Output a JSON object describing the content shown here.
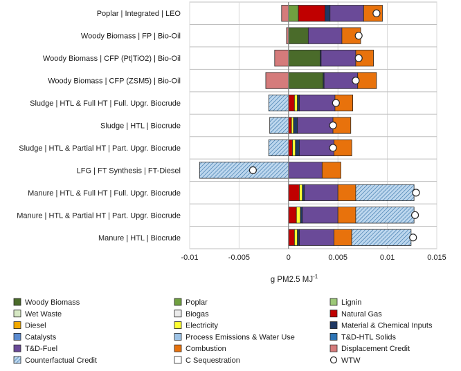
{
  "chart_data": {
    "type": "bar",
    "orientation": "horizontal",
    "stacked": true,
    "xlabel": "g PM2.5 MJ",
    "xlabel_sup": "-1",
    "xlim": [
      -0.01,
      0.015
    ],
    "xticks": [
      -0.01,
      -0.005,
      0,
      0.005,
      0.01,
      0.015
    ],
    "xtick_labels": [
      "-0.01",
      "-0.005",
      "0",
      "0.005",
      "0.01",
      "0.015"
    ],
    "categories": [
      "Poplar | Integrated | LEO",
      "Woody Biomass | FP | Bio-Oil",
      "Woody Biomass | CFP (Pt|TiO2) | Bio-Oil",
      "Woody Biomass | CFP (ZSM5) | Bio-Oil",
      "Sludge | HTL & Full HT | Full. Upgr. Biocrude",
      "Sludge | HTL | Biocrude",
      "Sludge | HTL & Partial HT | Part. Upgr. Biocrude",
      "LFG | FT Synthesis | FT-Diesel",
      "Manure | HTL & Full HT | Full. Upgr. Biocrude",
      "Manure | HTL & Partial HT | Part. Upgr. Biocrude",
      "Manure | HTL | Biocrude"
    ],
    "series": [
      {
        "name": "Woody Biomass",
        "color": "#4a6b2a",
        "pattern": "",
        "values": [
          0,
          0.002,
          0.0032,
          0.0035,
          0,
          0,
          0,
          0,
          0,
          0,
          0
        ]
      },
      {
        "name": "Poplar",
        "color": "#70a040",
        "pattern": "",
        "values": [
          0.001,
          0,
          0,
          0,
          0,
          0,
          0,
          0,
          0,
          0,
          0
        ]
      },
      {
        "name": "Lignin",
        "color": "#9cc878",
        "pattern": "",
        "values": [
          0,
          0,
          0,
          0,
          0,
          0,
          0,
          0,
          0,
          0,
          0
        ]
      },
      {
        "name": "Wet Waste",
        "color": "#d6e8c4",
        "pattern": "",
        "values": [
          0,
          0,
          0,
          0,
          0,
          0,
          0,
          0,
          0,
          0,
          0
        ]
      },
      {
        "name": "Biogas",
        "color": "#ebebeb",
        "pattern": "",
        "values": [
          0,
          0,
          0,
          0,
          0,
          0,
          0,
          0,
          0,
          0,
          0
        ]
      },
      {
        "name": "Natural Gas",
        "color": "#c00000",
        "pattern": "",
        "values": [
          0.0027,
          0,
          0,
          0,
          0.0006,
          0.0003,
          0.0004,
          0,
          0.0011,
          0.0008,
          0.0006
        ]
      },
      {
        "name": "Diesel",
        "color": "#f2a900",
        "pattern": "",
        "values": [
          0,
          0,
          0,
          0,
          0,
          0,
          0,
          0,
          0,
          0,
          0
        ]
      },
      {
        "name": "Electricity",
        "color": "#ffff33",
        "pattern": "",
        "values": [
          0,
          0,
          0,
          0,
          0.0003,
          0.0002,
          0.0003,
          0,
          0.0003,
          0.0004,
          0.0003
        ]
      },
      {
        "name": "Material & Chemical Inputs",
        "color": "#1f3864",
        "pattern": "",
        "values": [
          0.0005,
          0,
          0.0001,
          0.0001,
          0.0002,
          0.0004,
          0.0004,
          0,
          0.0002,
          0.0002,
          0.0002
        ]
      },
      {
        "name": "Catalysts",
        "color": "#5b8bd0",
        "pattern": "",
        "values": [
          0,
          0,
          0,
          0,
          0,
          0,
          0,
          0,
          0,
          0,
          0
        ]
      },
      {
        "name": "Process Emissions & Water Use",
        "color": "#9dc3e6",
        "pattern": "",
        "values": [
          0,
          0,
          0,
          0,
          0,
          0,
          0,
          0,
          0,
          0,
          0
        ]
      },
      {
        "name": "T&D-HTL Solids",
        "color": "#2e75b6",
        "pattern": "",
        "values": [
          0,
          0,
          0,
          0,
          0,
          0,
          0,
          0,
          0,
          0,
          0
        ]
      },
      {
        "name": "T&D-Fuel",
        "color": "#6a4a98",
        "pattern": "",
        "values": [
          0.0034,
          0.0034,
          0.0035,
          0.0034,
          0.0036,
          0.0036,
          0.0035,
          0.0034,
          0.0034,
          0.0036,
          0.0035
        ]
      },
      {
        "name": "Combustion",
        "color": "#e8720c",
        "pattern": "",
        "values": [
          0.0019,
          0.0019,
          0.0018,
          0.0019,
          0.0018,
          0.0018,
          0.0018,
          0.0019,
          0.0018,
          0.0018,
          0.0018
        ]
      },
      {
        "name": "Displacement Credit",
        "color": "#d57b7b",
        "pattern": "",
        "values": [
          -0.0007,
          -0.0002,
          -0.0014,
          -0.0023,
          0,
          0,
          0,
          0,
          0,
          0,
          0
        ]
      },
      {
        "name": "Counterfactual Credit",
        "color": "#bdd7ee",
        "pattern": "hatch",
        "values": [
          0,
          0,
          0,
          0,
          -0.002,
          -0.0019,
          -0.002,
          -0.009,
          0.0059,
          0.0059,
          0.006
        ]
      },
      {
        "name": "C Sequestration",
        "color": "#ffffff",
        "pattern": "",
        "values": [
          0,
          0,
          0,
          0,
          0,
          0,
          0,
          0,
          0,
          0,
          0
        ]
      }
    ],
    "wtw": {
      "name": "WTW",
      "values": [
        0.0089,
        0.0071,
        0.0071,
        0.0068,
        0.0048,
        0.0045,
        0.0045,
        -0.0036,
        0.0129,
        0.0128,
        0.0126
      ]
    },
    "legend": {
      "placement": "bottom",
      "entries": [
        {
          "name": "Woody Biomass",
          "color": "#4a6b2a",
          "pattern": ""
        },
        {
          "name": "Poplar",
          "color": "#70a040",
          "pattern": ""
        },
        {
          "name": "Lignin",
          "color": "#9cc878",
          "pattern": ""
        },
        {
          "name": "Wet Waste",
          "color": "#d6e8c4",
          "pattern": ""
        },
        {
          "name": "Biogas",
          "color": "#ebebeb",
          "pattern": ""
        },
        {
          "name": "Natural Gas",
          "color": "#c00000",
          "pattern": ""
        },
        {
          "name": "Diesel",
          "color": "#f2a900",
          "pattern": ""
        },
        {
          "name": "Electricity",
          "color": "#ffff33",
          "pattern": ""
        },
        {
          "name": "Material & Chemical Inputs",
          "color": "#1f3864",
          "pattern": ""
        },
        {
          "name": "Catalysts",
          "color": "#5b8bd0",
          "pattern": ""
        },
        {
          "name": "Process Emissions & Water Use",
          "color": "#9dc3e6",
          "pattern": ""
        },
        {
          "name": "T&D-HTL Solids",
          "color": "#2e75b6",
          "pattern": ""
        },
        {
          "name": "T&D-Fuel",
          "color": "#6a4a98",
          "pattern": ""
        },
        {
          "name": "Combustion",
          "color": "#e8720c",
          "pattern": ""
        },
        {
          "name": "Displacement Credit",
          "color": "#d57b7b",
          "pattern": ""
        },
        {
          "name": "Counterfactual Credit",
          "color": "#bdd7ee",
          "pattern": "hatch"
        },
        {
          "name": "C Sequestration",
          "color": "#ffffff",
          "pattern": ""
        },
        {
          "name": "WTW",
          "color": "#ffffff",
          "pattern": "marker"
        }
      ]
    }
  }
}
